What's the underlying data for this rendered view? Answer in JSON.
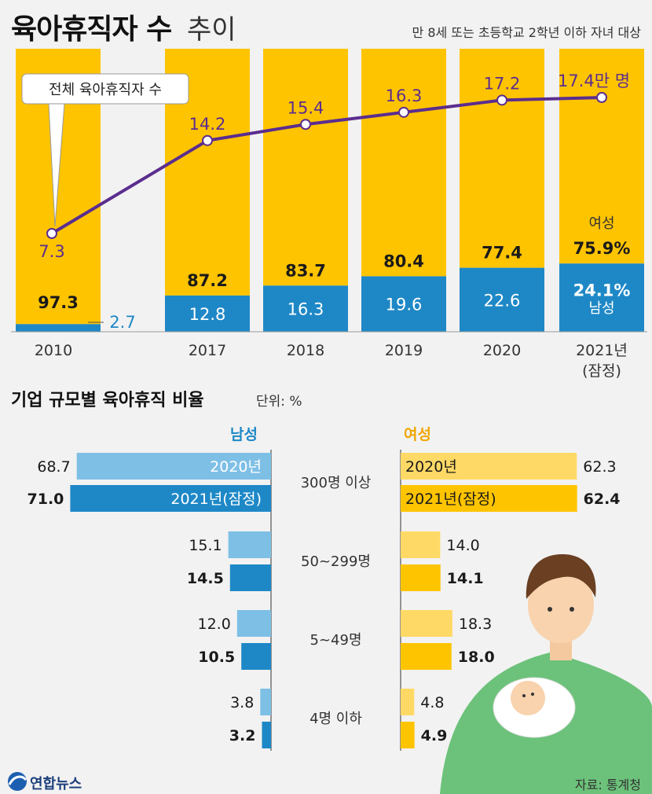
{
  "header": {
    "title_bold": "육아휴직자 수",
    "title_light": "추이",
    "subtitle": "만 8세 또는 초등학교 2학년 이하 자녀 대상"
  },
  "colors": {
    "female": "#ffc400",
    "male": "#1e88c7",
    "line": "#5b2d8e",
    "male_light": "#7ebfe6",
    "female_light": "#ffd966"
  },
  "chart_data": [
    {
      "type": "bar",
      "stacked_percent": true,
      "categories": [
        "2010",
        "2017",
        "2018",
        "2019",
        "2020",
        "2021년\n(잠정)"
      ],
      "category_labels": [
        "2010",
        "2017",
        "2018",
        "2019",
        "2020",
        "2021년",
        "(잠정)"
      ],
      "series": [
        {
          "name": "여성",
          "values": [
            97.3,
            87.2,
            83.7,
            80.4,
            77.4,
            75.9
          ],
          "labels": [
            "97.3",
            "87.2",
            "83.7",
            "80.4",
            "77.4",
            "75.9%"
          ]
        },
        {
          "name": "남성",
          "values": [
            2.7,
            12.8,
            16.3,
            19.6,
            22.6,
            24.1
          ],
          "labels": [
            "2.7",
            "12.8",
            "16.3",
            "19.6",
            "22.6",
            "24.1%"
          ]
        }
      ],
      "line_series": {
        "name": "전체 육아휴직자 수",
        "values": [
          7.3,
          14.2,
          15.4,
          16.3,
          17.2,
          17.4
        ],
        "labels": [
          "7.3",
          "14.2",
          "15.4",
          "16.3",
          "17.2",
          "17.4만 명"
        ]
      },
      "female_label": "여성",
      "male_label": "남성"
    },
    {
      "type": "bar",
      "orientation": "horizontal",
      "title": "기업 규모별 육아휴직 비율",
      "unit": "단위: %",
      "categories": [
        "300명 이상",
        "50~299명",
        "5~49명",
        "4명 이하"
      ],
      "male_header": "남성",
      "female_header": "여성",
      "series_names": [
        "2020년",
        "2021년(잠정)"
      ],
      "male": {
        "2020": [
          68.7,
          15.1,
          12.0,
          3.8
        ],
        "2021": [
          71.0,
          14.5,
          10.5,
          3.2
        ]
      },
      "female": {
        "2020": [
          62.3,
          14.0,
          18.3,
          4.8
        ],
        "2021": [
          62.4,
          14.1,
          18.0,
          4.9
        ]
      }
    }
  ],
  "footer": {
    "logo": "연합뉴스",
    "source": "자료: 통계청"
  }
}
